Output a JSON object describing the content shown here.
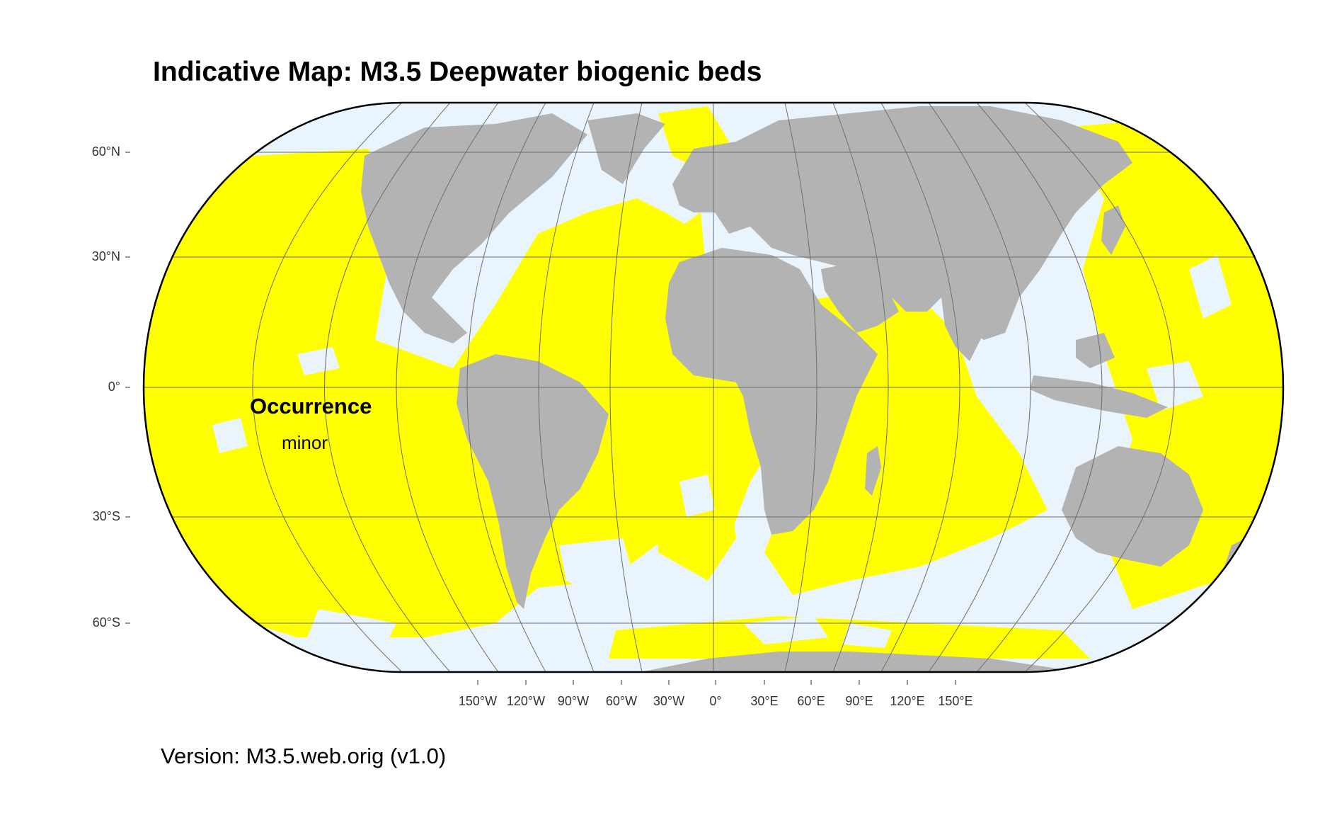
{
  "title": "Indicative Map: M3.5 Deepwater biogenic beds",
  "version": "Version: M3.5.web.orig (v1.0)",
  "legend": {
    "title": "Occurrence",
    "items": [
      "minor"
    ]
  },
  "axes": {
    "lat_labels": [
      "60°N",
      "30°N",
      "0°",
      "30°S",
      "60°S"
    ],
    "lon_labels": [
      "150°W",
      "120°W",
      "90°W",
      "60°W",
      "30°W",
      "0°",
      "30°E",
      "60°E",
      "90°E",
      "120°E",
      "150°E"
    ]
  },
  "colors": {
    "ocean": "#eaf4fc",
    "occurrence_minor": "#ffff00",
    "land": "#b3b3b3",
    "graticule": "#6e6e6e",
    "border": "#000000"
  }
}
